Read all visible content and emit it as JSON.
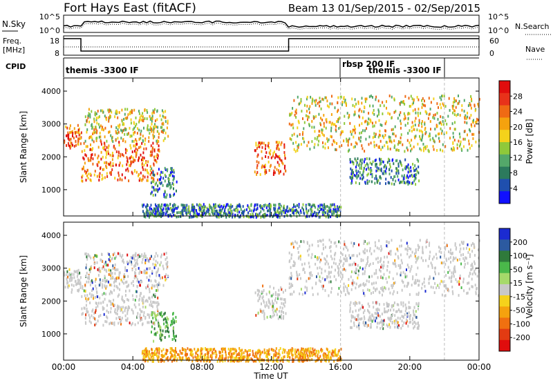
{
  "header": {
    "station": "Fort Hays East (fitACF)",
    "beam_range": "Beam 13  01/Sep/2015 - 02/Sep/2015"
  },
  "strip_nsky": {
    "left_label": "N.Sky",
    "left_ticks": [
      "10^5",
      "10^0"
    ],
    "right_ticks": [
      "10^5",
      "10^0"
    ],
    "right_label": "N.Search"
  },
  "strip_freq": {
    "left_label_1": "Freq.",
    "left_label_2": "[MHz]",
    "left_ticks": [
      "18",
      "8"
    ],
    "right_ticks": [
      "60",
      "0"
    ],
    "right_label": "Nave"
  },
  "strip_cpid": {
    "label": "CPID",
    "segments": [
      {
        "text": "themis -3300 IF",
        "start_h": 0
      },
      {
        "text": "rbsp 200 IF",
        "start_h": 16
      },
      {
        "text": "themis -3300 IF",
        "start_h": 18.5
      }
    ]
  },
  "colors": {
    "power_scale": [
      "#1010ff",
      "#1f4fae",
      "#2c7a5d",
      "#54a86a",
      "#8fc93a",
      "#f4d21b",
      "#f5a20e",
      "#ef6a14",
      "#e8321a",
      "#e00d0d"
    ],
    "velocity_scale": [
      "#1b2bd1",
      "#2c5aa0",
      "#2f7a3b",
      "#4ab84a",
      "#a6d96a",
      "#c8c8c8",
      "#f5d21b",
      "#f5a20e",
      "#f07010",
      "#e23b12",
      "#e00d0d"
    ]
  },
  "chart_data": [
    {
      "type": "heatmap",
      "title": "",
      "xlabel": "",
      "ylabel": "Slant Range [km]",
      "xlim_hours": [
        0,
        24
      ],
      "ylim": [
        200,
        4400
      ],
      "yticks": [
        "1000",
        "2000",
        "3000",
        "4000"
      ],
      "colorbar": {
        "label": "Power [dB]",
        "ticks": [
          "4",
          "8",
          "12",
          "16",
          "20",
          "24",
          "28"
        ],
        "range": [
          0,
          32
        ]
      },
      "echo_regions": [
        {
          "start_h": 0.0,
          "end_h": 1.0,
          "range_km": [
            2300,
            3000
          ],
          "level": "high"
        },
        {
          "start_h": 1.0,
          "end_h": 5.5,
          "range_km": [
            1300,
            2500
          ],
          "level": "high"
        },
        {
          "start_h": 1.2,
          "end_h": 6.0,
          "range_km": [
            2500,
            3500
          ],
          "level": "mid"
        },
        {
          "start_h": 5.0,
          "end_h": 6.5,
          "range_km": [
            800,
            1700
          ],
          "level": "low"
        },
        {
          "start_h": 11.0,
          "end_h": 12.8,
          "range_km": [
            1500,
            2500
          ],
          "level": "high"
        },
        {
          "start_h": 13.0,
          "end_h": 24.0,
          "range_km": [
            2200,
            3900
          ],
          "level": "mid"
        },
        {
          "start_h": 16.5,
          "end_h": 20.5,
          "range_km": [
            1200,
            2000
          ],
          "level": "low"
        },
        {
          "start_h": 4.5,
          "end_h": 16.0,
          "range_km": [
            200,
            600
          ],
          "level": "low"
        }
      ]
    },
    {
      "type": "heatmap",
      "title": "",
      "xlabel": "Time UT",
      "ylabel": "Slant Range [km]",
      "xlim_hours": [
        0,
        24
      ],
      "ylim": [
        200,
        4400
      ],
      "xticks": [
        "00:00",
        "04:00",
        "08:00",
        "12:00",
        "16:00",
        "20:00",
        "00:00"
      ],
      "yticks": [
        "1000",
        "2000",
        "3000",
        "4000"
      ],
      "colorbar": {
        "label": "Velocity [m s⁻¹]",
        "ticks": [
          "200",
          "100",
          "50",
          "15",
          "-15",
          "-50",
          "-100",
          "-200"
        ]
      },
      "echo_regions": [
        {
          "start_h": 0.0,
          "end_h": 1.0,
          "range_km": [
            2300,
            3000
          ],
          "level": "ground"
        },
        {
          "start_h": 1.0,
          "end_h": 5.5,
          "range_km": [
            1300,
            2500
          ],
          "level": "ground"
        },
        {
          "start_h": 1.2,
          "end_h": 6.0,
          "range_km": [
            2500,
            3500
          ],
          "level": "mixed"
        },
        {
          "start_h": 5.0,
          "end_h": 6.5,
          "range_km": [
            800,
            1700
          ],
          "level": "positive"
        },
        {
          "start_h": 11.0,
          "end_h": 12.8,
          "range_km": [
            1500,
            2500
          ],
          "level": "ground"
        },
        {
          "start_h": 13.0,
          "end_h": 24.0,
          "range_km": [
            2200,
            3900
          ],
          "level": "ground"
        },
        {
          "start_h": 16.5,
          "end_h": 20.5,
          "range_km": [
            1200,
            2000
          ],
          "level": "ground"
        },
        {
          "start_h": 4.5,
          "end_h": 16.0,
          "range_km": [
            200,
            600
          ],
          "level": "negative"
        }
      ]
    }
  ]
}
